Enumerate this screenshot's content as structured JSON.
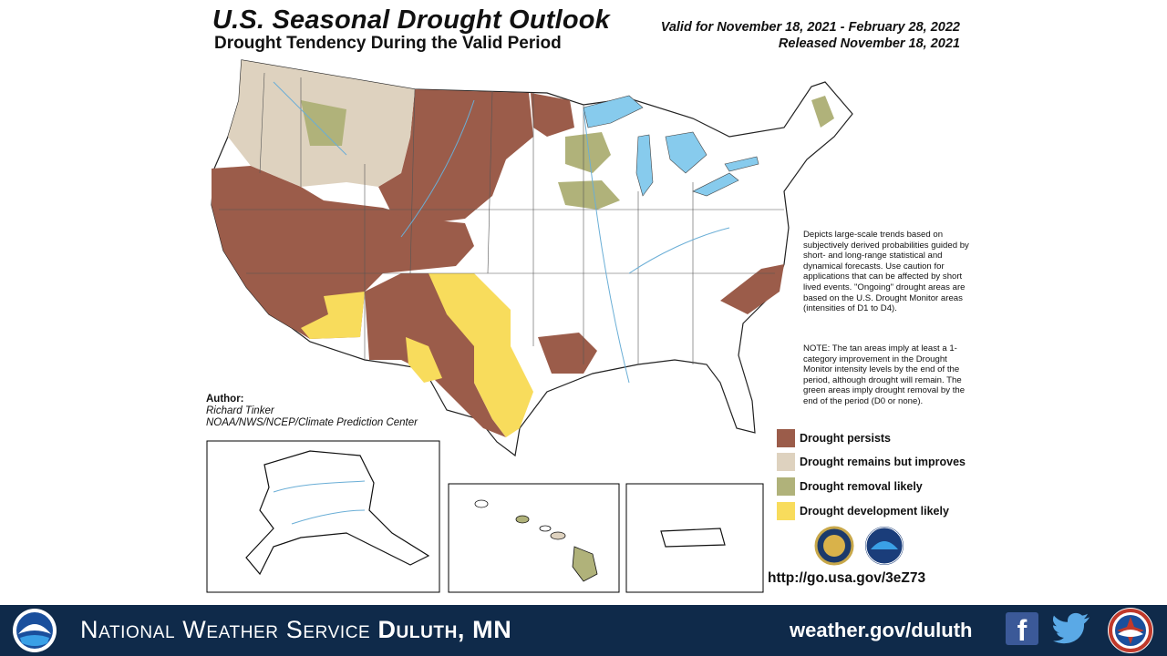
{
  "header": {
    "title": "U.S. Seasonal Drought Outlook",
    "subtitle": "Drought Tendency During the Valid Period",
    "valid_text": "Valid for November 18, 2021 - February 28, 2022",
    "released_text": "Released November 18, 2021"
  },
  "notes": {
    "description": "Depicts large-scale trends based on subjectively derived probabilities guided by short- and long-range statistical and dynamical forecasts. Use caution for applications that can be affected by short lived events. \"Ongoing\" drought areas are based on the U.S. Drought Monitor areas (intensities of D1 to D4).",
    "tan_note": "NOTE: The tan areas imply at least a 1-category improvement in the Drought Monitor intensity levels by the end of the period, although drought will remain. The green areas imply drought removal by the end of the period (D0 or none)."
  },
  "legend": {
    "items": [
      {
        "label": "Drought persists",
        "color": "#9b5c4a"
      },
      {
        "label": "Drought remains but improves",
        "color": "#ded2bf"
      },
      {
        "label": "Drought removal likely",
        "color": "#b0b27a"
      },
      {
        "label": "Drought development likely",
        "color": "#f8dc5c"
      }
    ]
  },
  "author": {
    "label": "Author:",
    "name": "Richard Tinker",
    "org": "NOAA/NWS/NCEP/Climate Prediction Center"
  },
  "url_text": "http://go.usa.gov/3eZ73",
  "footer": {
    "agency": "National Weather Service",
    "office": "Duluth, MN",
    "website": "weather.gov/duluth",
    "facebook_icon": "facebook-icon",
    "twitter_icon": "twitter-icon",
    "noaa_logo": "noaa-logo",
    "nws_logo": "nws-logo"
  },
  "colors": {
    "persists": "#9b5c4a",
    "improves": "#ded2bf",
    "removal": "#b0b27a",
    "development": "#f8dc5c",
    "water": "#87cbed",
    "footer_bg": "#0f2a4a"
  }
}
